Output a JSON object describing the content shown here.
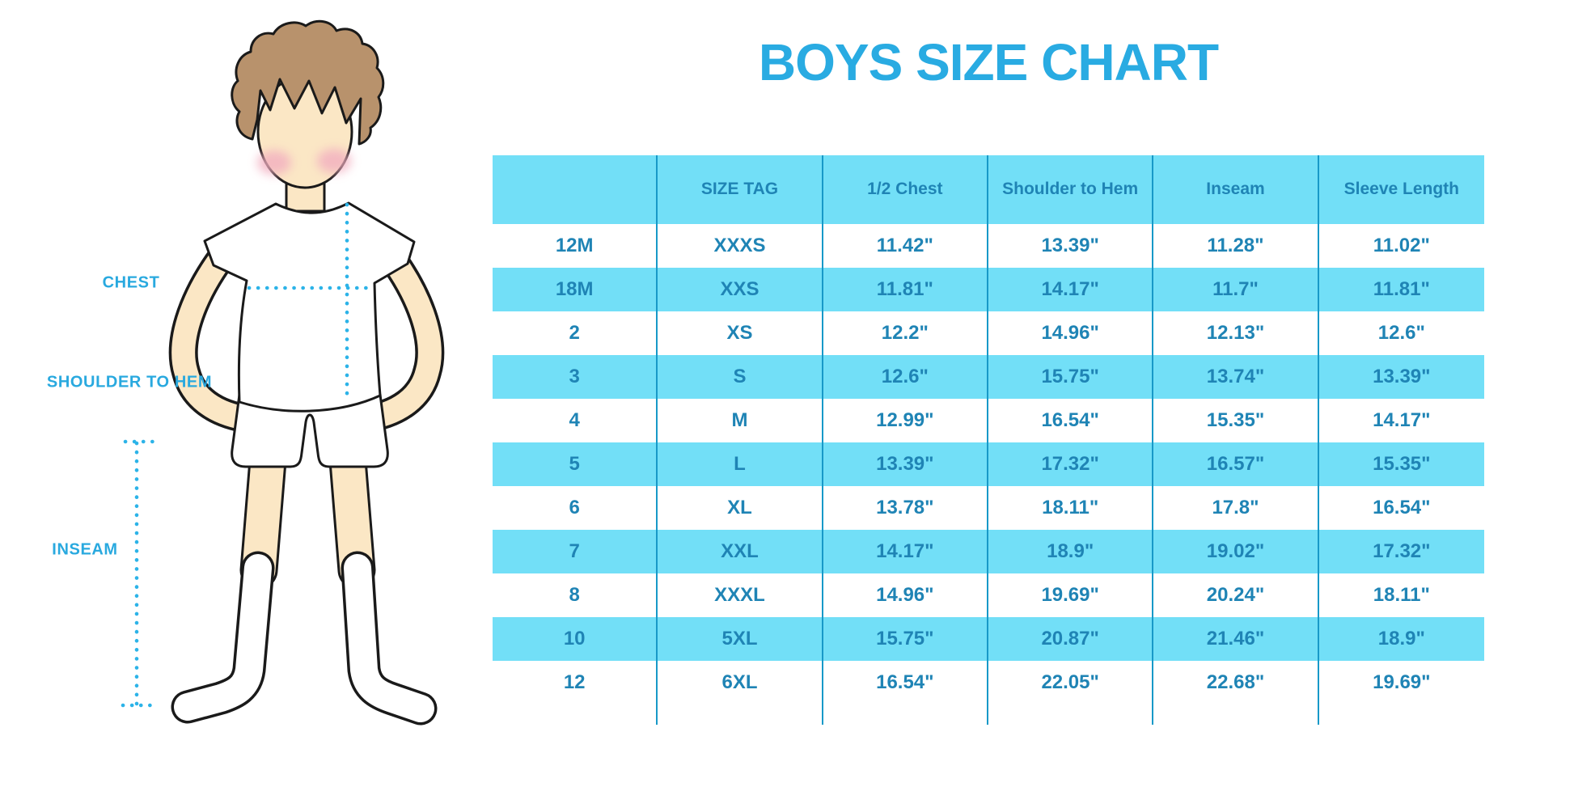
{
  "title": "BOYS SIZE CHART",
  "figure": {
    "labels": {
      "chest": "CHEST",
      "shoulder_to_hem": "SHOULDER TO HEM",
      "inseam": "INSEAM"
    }
  },
  "colors": {
    "title": "#29ABE2",
    "label": "#29A9DF",
    "band": "#72DFF7",
    "divider": "#1899C8",
    "cell_text": "#1F84B5",
    "dotted_line": "#2CB3E8",
    "skin": "#FBE7C5",
    "hair": "#B8926C",
    "blush": "#F2AEC0"
  },
  "chart_data": {
    "type": "table",
    "title": "BOYS SIZE CHART",
    "units": "inches",
    "striped": true,
    "columns": [
      "",
      "SIZE TAG",
      "1/2 Chest",
      "Shoulder to Hem",
      "Inseam",
      "Sleeve Length"
    ],
    "rows": [
      [
        "12M",
        "XXXS",
        "11.42\"",
        "13.39\"",
        "11.28\"",
        "11.02\""
      ],
      [
        "18M",
        "XXS",
        "11.81\"",
        "14.17\"",
        "11.7\"",
        "11.81\""
      ],
      [
        "2",
        "XS",
        "12.2\"",
        "14.96\"",
        "12.13\"",
        "12.6\""
      ],
      [
        "3",
        "S",
        "12.6\"",
        "15.75\"",
        "13.74\"",
        "13.39\""
      ],
      [
        "4",
        "M",
        "12.99\"",
        "16.54\"",
        "15.35\"",
        "14.17\""
      ],
      [
        "5",
        "L",
        "13.39\"",
        "17.32\"",
        "16.57\"",
        "15.35\""
      ],
      [
        "6",
        "XL",
        "13.78\"",
        "18.11\"",
        "17.8\"",
        "16.54\""
      ],
      [
        "7",
        "XXL",
        "14.17\"",
        "18.9\"",
        "19.02\"",
        "17.32\""
      ],
      [
        "8",
        "XXXL",
        "14.96\"",
        "19.69\"",
        "20.24\"",
        "18.11\""
      ],
      [
        "10",
        "5XL",
        "15.75\"",
        "20.87\"",
        "21.46\"",
        "18.9\""
      ],
      [
        "12",
        "6XL",
        "16.54\"",
        "22.05\"",
        "22.68\"",
        "19.69\""
      ]
    ]
  }
}
